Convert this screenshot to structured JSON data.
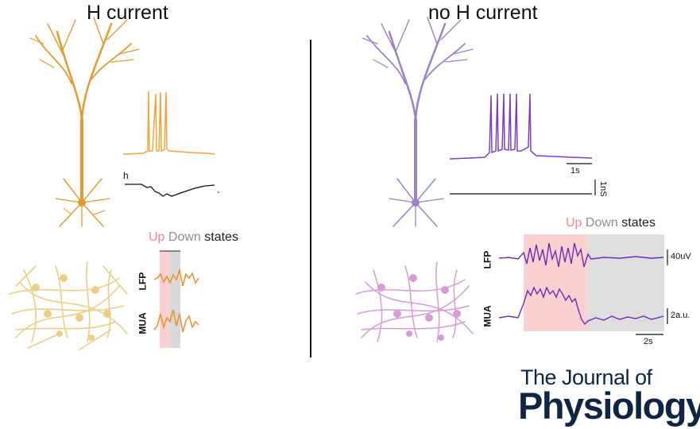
{
  "left_panel": {
    "title": "H current",
    "trace_label": "h",
    "legend": {
      "up": "Up",
      "down": "Down",
      "states": "states"
    },
    "lfp_label": "LFP",
    "mua_label": "MUA",
    "color": "#e39a2e"
  },
  "right_panel": {
    "title": "no H current",
    "legend": {
      "up": "Up",
      "down": "Down",
      "states": "states"
    },
    "lfp_label": "LFP",
    "mua_label": "MUA",
    "scale_time_top": "1s",
    "scale_conductance": "1nS",
    "scale_lfp": "40uV",
    "scale_mua": "2a.u.",
    "scale_time_bottom": "2s",
    "color": "#7c3fc8"
  },
  "journal": {
    "line1": "The Journal of",
    "line2": "Physiology"
  }
}
